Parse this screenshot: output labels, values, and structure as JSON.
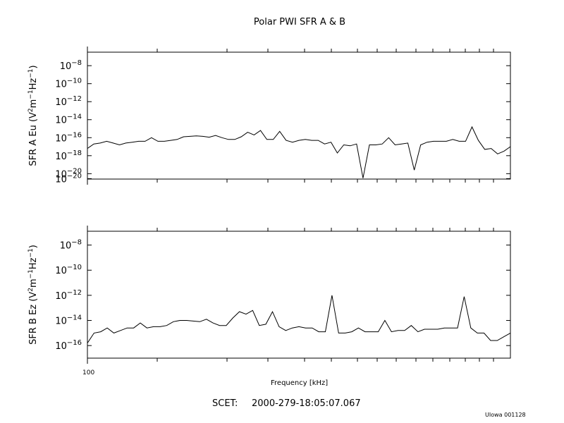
{
  "title": "Polar PWI SFR A & B",
  "footer": {
    "scet_label": "SCET:",
    "scet_value": "2000-279-18:05:07.067",
    "credit": "UIowa 001128"
  },
  "chart_data": [
    {
      "type": "line",
      "ylabel": "SFR A Eu (V²m⁻¹Hz⁻¹)",
      "ylabel_parts": [
        "SFR A Eu (V",
        "2",
        "m",
        "-1",
        "Hz",
        "-1",
        ")"
      ],
      "xlabel": "Frequency [kHz]",
      "x_tick_labels": [
        "100"
      ],
      "y_scale": "log",
      "y_tick_labels": [
        {
          "base": "10",
          "exp": "-8"
        },
        {
          "base": "10",
          "exp": "-10"
        },
        {
          "base": "10",
          "exp": "-12"
        },
        {
          "base": "10",
          "exp": "-14"
        },
        {
          "base": "10",
          "exp": "-16"
        },
        {
          "base": "10",
          "exp": "-18"
        },
        {
          "base": "10",
          "exp": "-20"
        },
        {
          "base": "10",
          "exp": "-20"
        }
      ],
      "ylim_log10": [
        -20.6,
        -6.5
      ],
      "series": [
        {
          "values_log10": [
            -17.2,
            -16.7,
            -16.6,
            -16.4,
            -16.6,
            -16.8,
            -16.6,
            -16.5,
            -16.4,
            -16.4,
            -16.0,
            -16.4,
            -16.4,
            -16.3,
            -16.2,
            -15.9,
            -15.85,
            -15.8,
            -15.85,
            -15.95,
            -15.75,
            -16.0,
            -16.2,
            -16.2,
            -15.9,
            -15.4,
            -15.7,
            -15.2,
            -16.2,
            -16.2,
            -15.3,
            -16.3,
            -16.5,
            -16.3,
            -16.2,
            -16.3,
            -16.3,
            -16.7,
            -16.5,
            -17.7,
            -16.8,
            -16.9,
            -16.7,
            -20.5,
            -16.8,
            -16.8,
            -16.7,
            -16.0,
            -16.8,
            -16.7,
            -16.6,
            -19.6,
            -16.8,
            -16.5,
            -16.4,
            -16.4,
            -16.4,
            -16.2,
            -16.4,
            -16.4,
            -14.8,
            -16.3,
            -17.3,
            -17.2,
            -17.8,
            -17.5,
            -17.0
          ]
        }
      ]
    },
    {
      "type": "line",
      "ylabel": "SFR B Ez (V²m⁻¹Hz⁻¹)",
      "ylabel_parts": [
        "SFR B Ez (V",
        "2",
        "m",
        "-1",
        "Hz",
        "-1",
        ")"
      ],
      "xlabel": "Frequency [kHz]",
      "x_tick_labels": [
        "100"
      ],
      "y_scale": "log",
      "y_tick_labels": [
        {
          "base": "10",
          "exp": "-8"
        },
        {
          "base": "10",
          "exp": "-10"
        },
        {
          "base": "10",
          "exp": "-12"
        },
        {
          "base": "10",
          "exp": "-14"
        },
        {
          "base": "10",
          "exp": "-16"
        }
      ],
      "ylim_log10": [
        -17.0,
        -6.9
      ],
      "series": [
        {
          "values_log10": [
            -15.8,
            -15.0,
            -14.9,
            -14.6,
            -15.0,
            -14.8,
            -14.6,
            -14.6,
            -14.2,
            -14.6,
            -14.5,
            -14.5,
            -14.4,
            -14.1,
            -14.0,
            -14.0,
            -14.05,
            -14.1,
            -13.9,
            -14.2,
            -14.4,
            -14.4,
            -13.8,
            -13.3,
            -13.5,
            -13.2,
            -14.4,
            -14.3,
            -13.3,
            -14.5,
            -14.8,
            -14.6,
            -14.5,
            -14.6,
            -14.6,
            -14.9,
            -14.9,
            -12.0,
            -15.0,
            -15.0,
            -14.9,
            -14.6,
            -14.9,
            -14.9,
            -14.9,
            -14.0,
            -14.9,
            -14.8,
            -14.8,
            -14.4,
            -14.9,
            -14.7,
            -14.7,
            -14.7,
            -14.6,
            -14.6,
            -14.6,
            -12.1,
            -14.6,
            -15.0,
            -15.0,
            -15.6,
            -15.6,
            -15.3,
            -15.0
          ]
        }
      ]
    }
  ]
}
